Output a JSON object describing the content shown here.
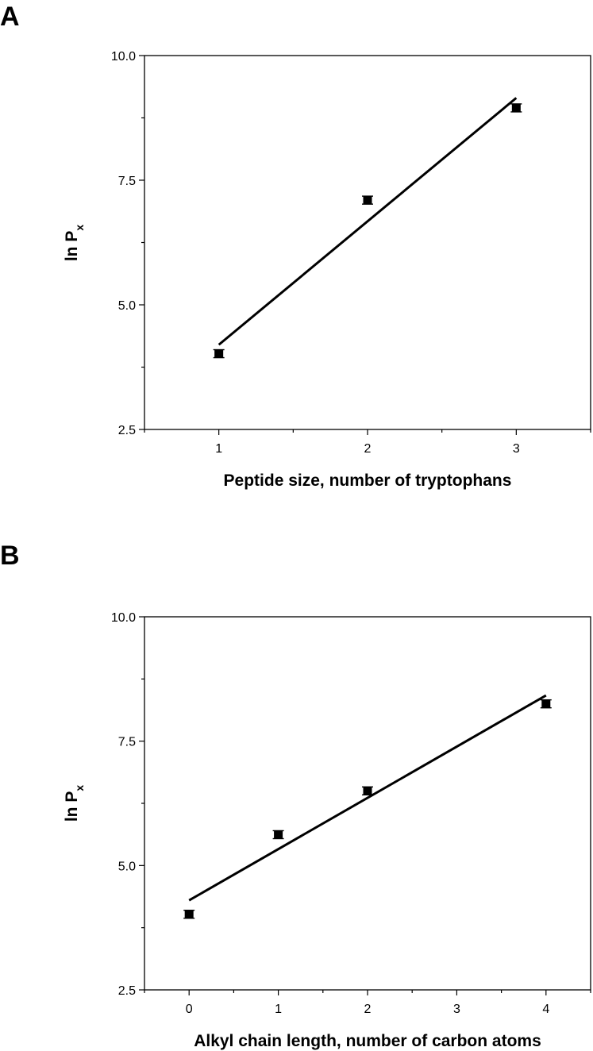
{
  "chart_data": [
    {
      "type": "scatter",
      "panel_label": "A",
      "xlabel": "Peptide size, number of tryptophans",
      "ylabel": {
        "main": "ln P",
        "subscript": "x"
      },
      "xlim": [
        0.5,
        3.5
      ],
      "ylim": [
        2.5,
        10.0
      ],
      "x_major_ticks": [
        1,
        2,
        3
      ],
      "x_minor_ticks": [
        0.5,
        1.5,
        2.5,
        3.5
      ],
      "x_tick_labels": [
        "1",
        "2",
        "3"
      ],
      "y_major_ticks": [
        2.5,
        5.0,
        7.5,
        10.0
      ],
      "y_tick_labels": [
        "2.5",
        "5.0",
        "7.5",
        "10.0"
      ],
      "grid": false,
      "legend": "none",
      "series": [
        {
          "x": [
            1,
            2,
            3
          ],
          "y": [
            4.02,
            7.1,
            8.95
          ],
          "err": [
            0.08,
            0.08,
            0.08
          ]
        }
      ],
      "fit_line": {
        "x": [
          1,
          3
        ],
        "y": [
          4.2,
          9.15
        ]
      },
      "colors": {
        "marker": "#000000",
        "line": "#000000"
      }
    },
    {
      "type": "scatter",
      "panel_label": "B",
      "xlabel": "Alkyl chain length, number of carbon atoms",
      "ylabel": {
        "main": "ln P",
        "subscript": "x"
      },
      "xlim": [
        -0.5,
        4.5
      ],
      "ylim": [
        2.5,
        10.0
      ],
      "x_major_ticks": [
        0,
        1,
        2,
        3,
        4
      ],
      "x_minor_ticks": [
        -0.5,
        0.5,
        1.5,
        2.5,
        3.5,
        4.5
      ],
      "x_tick_labels": [
        "0",
        "1",
        "2",
        "3",
        "4"
      ],
      "y_major_ticks": [
        2.5,
        5.0,
        7.5,
        10.0
      ],
      "y_tick_labels": [
        "2.5",
        "5.0",
        "7.5",
        "10.0"
      ],
      "grid": false,
      "legend": "none",
      "series": [
        {
          "x": [
            0,
            1,
            2,
            4
          ],
          "y": [
            4.02,
            5.62,
            6.5,
            8.25
          ],
          "err": [
            0.08,
            0.08,
            0.08,
            0.08
          ]
        }
      ],
      "fit_line": {
        "x": [
          0,
          4
        ],
        "y": [
          4.3,
          8.42
        ]
      },
      "colors": {
        "marker": "#000000",
        "line": "#000000"
      }
    }
  ]
}
